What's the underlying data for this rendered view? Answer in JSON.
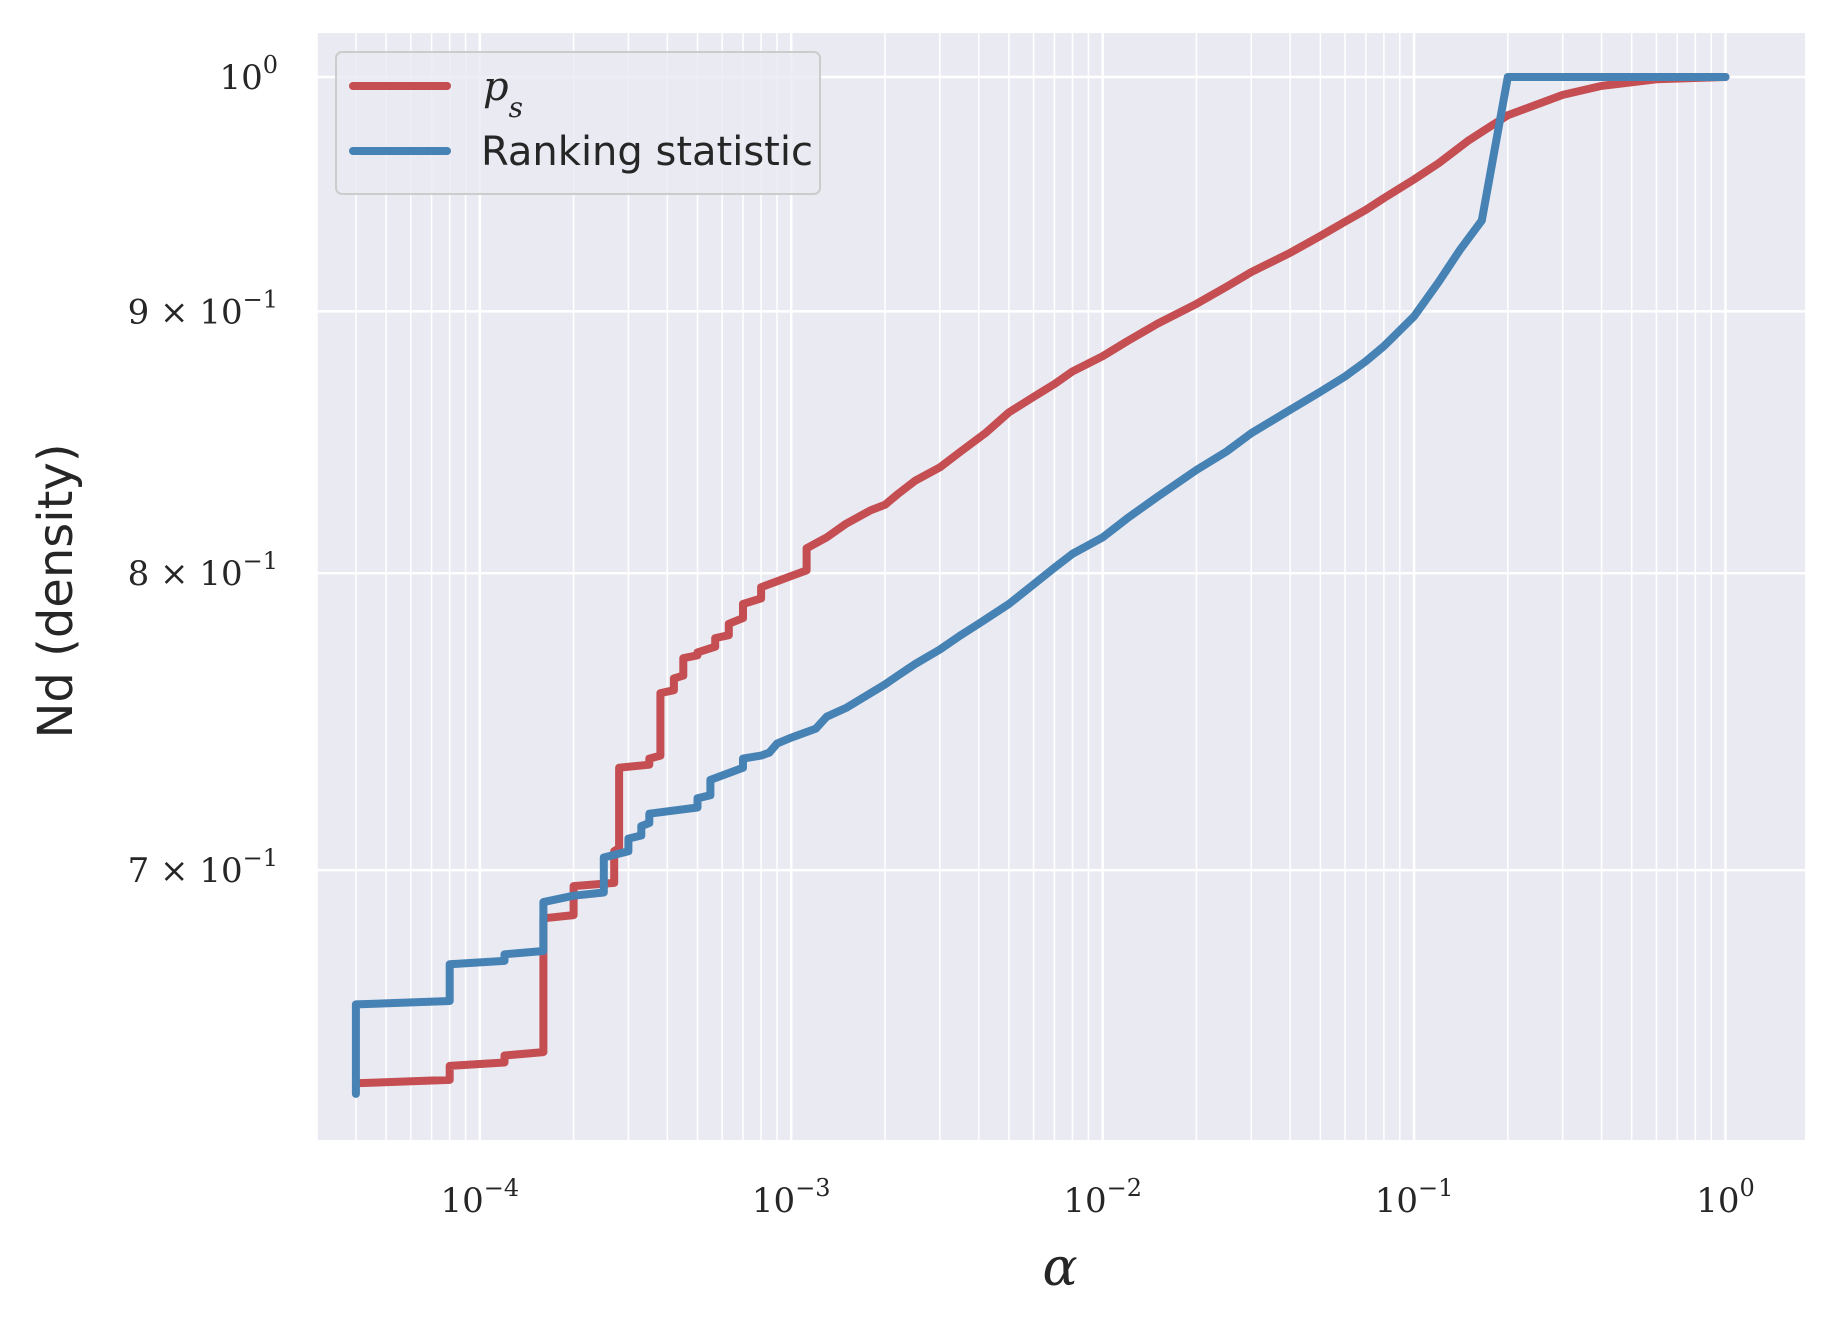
{
  "chart_data": {
    "type": "line",
    "title": "",
    "xlabel": "α",
    "ylabel": "Nd (density)",
    "x_scale": "log",
    "y_scale": "log",
    "xlim": [
      3e-05,
      1.8
    ],
    "ylim": [
      0.62,
      1.02
    ],
    "grid": true,
    "legend_position": "top-left",
    "x_ticks": [
      {
        "value": 0.0001,
        "base": "10",
        "exp": "−4"
      },
      {
        "value": 0.001,
        "base": "10",
        "exp": "−3"
      },
      {
        "value": 0.01,
        "base": "10",
        "exp": "−2"
      },
      {
        "value": 0.1,
        "base": "10",
        "exp": "−1"
      },
      {
        "value": 1,
        "base": "10",
        "exp": "0"
      }
    ],
    "y_ticks": [
      {
        "value": 0.7,
        "mant": "7 × 10",
        "exp": "−1"
      },
      {
        "value": 0.8,
        "mant": "8 × 10",
        "exp": "−1"
      },
      {
        "value": 0.9,
        "mant": "9 × 10",
        "exp": "−1"
      },
      {
        "value": 1.0,
        "mant": "10",
        "exp": "0"
      }
    ],
    "series": [
      {
        "name": "p_s",
        "color": "#c44e52",
        "points": [
          [
            4e-05,
            0.636
          ],
          [
            8e-05,
            0.637
          ],
          [
            8e-05,
            0.641
          ],
          [
            0.00012,
            0.642
          ],
          [
            0.00012,
            0.644
          ],
          [
            0.00016,
            0.645
          ],
          [
            0.00016,
            0.685
          ],
          [
            0.0002,
            0.686
          ],
          [
            0.0002,
            0.695
          ],
          [
            0.00027,
            0.696
          ],
          [
            0.00027,
            0.706
          ],
          [
            0.00028,
            0.707
          ],
          [
            0.00028,
            0.733
          ],
          [
            0.00035,
            0.734
          ],
          [
            0.00035,
            0.736
          ],
          [
            0.00038,
            0.737
          ],
          [
            0.00038,
            0.758
          ],
          [
            0.00042,
            0.759
          ],
          [
            0.00042,
            0.763
          ],
          [
            0.00045,
            0.764
          ],
          [
            0.00045,
            0.77
          ],
          [
            0.0005,
            0.771
          ],
          [
            0.0005,
            0.772
          ],
          [
            0.00057,
            0.774
          ],
          [
            0.00057,
            0.777
          ],
          [
            0.00063,
            0.778
          ],
          [
            0.00063,
            0.782
          ],
          [
            0.0007,
            0.784
          ],
          [
            0.0007,
            0.789
          ],
          [
            0.0008,
            0.791
          ],
          [
            0.0008,
            0.795
          ],
          [
            0.001,
            0.799
          ],
          [
            0.00112,
            0.801
          ],
          [
            0.00112,
            0.809
          ],
          [
            0.0013,
            0.813
          ],
          [
            0.0015,
            0.818
          ],
          [
            0.0018,
            0.823
          ],
          [
            0.002,
            0.825
          ],
          [
            0.0022,
            0.829
          ],
          [
            0.0025,
            0.834
          ],
          [
            0.003,
            0.839
          ],
          [
            0.0035,
            0.845
          ],
          [
            0.0042,
            0.852
          ],
          [
            0.005,
            0.86
          ],
          [
            0.006,
            0.866
          ],
          [
            0.007,
            0.871
          ],
          [
            0.008,
            0.876
          ],
          [
            0.01,
            0.882
          ],
          [
            0.012,
            0.888
          ],
          [
            0.015,
            0.895
          ],
          [
            0.02,
            0.903
          ],
          [
            0.025,
            0.91
          ],
          [
            0.03,
            0.916
          ],
          [
            0.04,
            0.924
          ],
          [
            0.05,
            0.931
          ],
          [
            0.06,
            0.937
          ],
          [
            0.07,
            0.942
          ],
          [
            0.08,
            0.947
          ],
          [
            0.1,
            0.955
          ],
          [
            0.12,
            0.962
          ],
          [
            0.15,
            0.972
          ],
          [
            0.2,
            0.983
          ],
          [
            0.3,
            0.992
          ],
          [
            0.4,
            0.996
          ],
          [
            0.6,
            0.999
          ],
          [
            1.0,
            1.0
          ]
        ]
      },
      {
        "name": "Ranking statistic",
        "color": "#4682b4",
        "points": [
          [
            4e-05,
            0.633
          ],
          [
            4e-05,
            0.659
          ],
          [
            8e-05,
            0.66
          ],
          [
            8e-05,
            0.671
          ],
          [
            0.00012,
            0.672
          ],
          [
            0.00012,
            0.674
          ],
          [
            0.00016,
            0.675
          ],
          [
            0.00016,
            0.69
          ],
          [
            0.0002,
            0.692
          ],
          [
            0.00025,
            0.693
          ],
          [
            0.00025,
            0.704
          ],
          [
            0.0003,
            0.706
          ],
          [
            0.0003,
            0.71
          ],
          [
            0.00033,
            0.711
          ],
          [
            0.00033,
            0.714
          ],
          [
            0.00035,
            0.715
          ],
          [
            0.00035,
            0.718
          ],
          [
            0.0005,
            0.72
          ],
          [
            0.0005,
            0.723
          ],
          [
            0.00055,
            0.724
          ],
          [
            0.00055,
            0.729
          ],
          [
            0.0007,
            0.733
          ],
          [
            0.0007,
            0.736
          ],
          [
            0.0008,
            0.737
          ],
          [
            0.00085,
            0.738
          ],
          [
            0.0009,
            0.741
          ],
          [
            0.001,
            0.743
          ],
          [
            0.0012,
            0.746
          ],
          [
            0.0013,
            0.75
          ],
          [
            0.0015,
            0.753
          ],
          [
            0.0018,
            0.758
          ],
          [
            0.002,
            0.761
          ],
          [
            0.0022,
            0.764
          ],
          [
            0.0025,
            0.768
          ],
          [
            0.003,
            0.773
          ],
          [
            0.0035,
            0.778
          ],
          [
            0.004,
            0.782
          ],
          [
            0.005,
            0.789
          ],
          [
            0.006,
            0.796
          ],
          [
            0.007,
            0.802
          ],
          [
            0.008,
            0.807
          ],
          [
            0.01,
            0.813
          ],
          [
            0.012,
            0.82
          ],
          [
            0.015,
            0.828
          ],
          [
            0.02,
            0.838
          ],
          [
            0.025,
            0.845
          ],
          [
            0.03,
            0.852
          ],
          [
            0.04,
            0.861
          ],
          [
            0.05,
            0.868
          ],
          [
            0.06,
            0.874
          ],
          [
            0.07,
            0.88
          ],
          [
            0.08,
            0.886
          ],
          [
            0.1,
            0.898
          ],
          [
            0.12,
            0.912
          ],
          [
            0.14,
            0.925
          ],
          [
            0.165,
            0.9375
          ],
          [
            0.2,
            1.0
          ],
          [
            0.4,
            1.0
          ],
          [
            0.7,
            1.0
          ],
          [
            1.0,
            1.0
          ]
        ]
      }
    ]
  }
}
